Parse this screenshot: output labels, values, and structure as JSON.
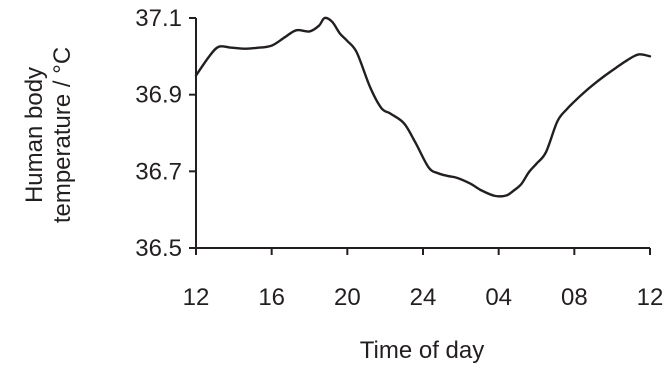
{
  "chart_data": {
    "type": "line",
    "xlabel": "Time of day",
    "ylabel_lines": [
      "Human body",
      "temperature / °C"
    ],
    "x_tick_labels": [
      "12",
      "16",
      "20",
      "24",
      "04",
      "08",
      "12"
    ],
    "x_tick_hours": [
      0,
      4,
      8,
      12,
      16,
      20,
      24
    ],
    "y_tick_labels": [
      "37.1",
      "36.9",
      "36.7",
      "36.5"
    ],
    "y_tick_values": [
      37.1,
      36.9,
      36.7,
      36.5
    ],
    "xlim_hours": [
      0,
      24
    ],
    "ylim": [
      36.5,
      37.1
    ],
    "grid": false,
    "series": [
      {
        "x_hours": [
          0,
          0.7,
          1.2,
          1.8,
          2.5,
          3.2,
          4.0,
          4.7,
          5.3,
          6.0,
          6.5,
          6.8,
          7.2,
          7.6,
          8.0,
          8.5,
          9.2,
          9.8,
          10.3,
          11.0,
          11.6,
          12.3,
          12.8,
          13.3,
          13.8,
          14.5,
          15.1,
          15.8,
          16.4,
          16.8,
          17.2,
          17.6,
          18.0,
          18.5,
          19.1,
          19.6,
          20.0,
          20.5,
          21.0,
          21.6,
          22.2,
          22.8,
          23.4,
          24.0
        ],
        "values": [
          36.95,
          37.0,
          37.025,
          37.023,
          37.02,
          37.022,
          37.028,
          37.05,
          37.068,
          37.065,
          37.08,
          37.1,
          37.09,
          37.06,
          37.04,
          37.01,
          36.92,
          36.865,
          36.85,
          36.825,
          36.775,
          36.71,
          36.695,
          36.688,
          36.683,
          36.668,
          36.65,
          36.636,
          36.637,
          36.65,
          36.667,
          36.698,
          36.72,
          36.75,
          36.83,
          36.862,
          36.882,
          36.905,
          36.926,
          36.949,
          36.97,
          36.99,
          37.005,
          37.0
        ]
      }
    ]
  }
}
